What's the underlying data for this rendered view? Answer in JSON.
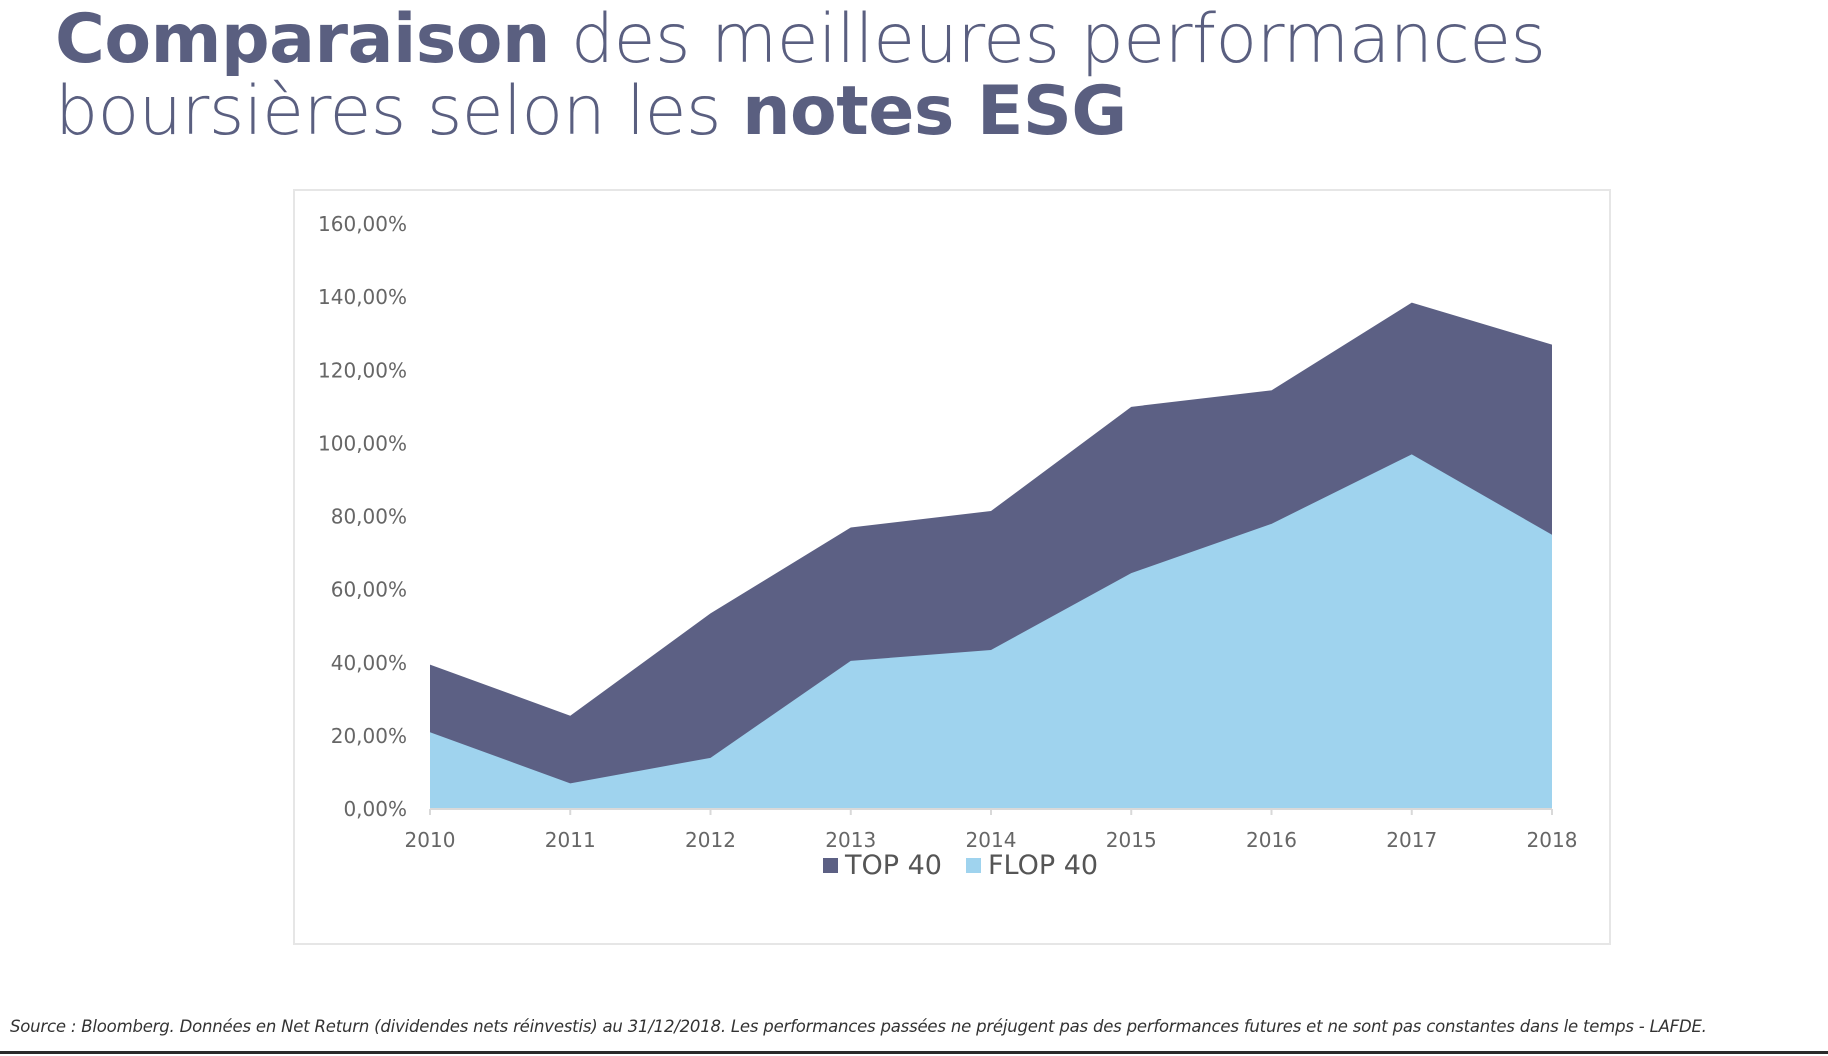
{
  "title": {
    "bold1": "Comparaison",
    "rest1": " des meilleures performances boursières selon les ",
    "bold2": "notes ESG"
  },
  "source": "Source : Bloomberg. Données en Net Return (dividendes nets réinvestis) au 31/12/2018. Les performances passées ne préjugent pas des performances futures et ne sont pas constantes dans le temps - LAFDE.",
  "colors": {
    "top": "#5c6084",
    "flop": "#9fd3ee",
    "title": "#5a5f80"
  },
  "chart_data": {
    "type": "area",
    "title": "",
    "xlabel": "",
    "ylabel": "",
    "categories": [
      "2010",
      "2011",
      "2012",
      "2013",
      "2014",
      "2015",
      "2016",
      "2017",
      "2018"
    ],
    "series": [
      {
        "name": "TOP 40",
        "values": [
          39.5,
          25.5,
          53.5,
          77.0,
          81.5,
          110.0,
          114.5,
          138.5,
          127.0
        ]
      },
      {
        "name": "FLOP 40",
        "values": [
          21.0,
          7.0,
          14.0,
          40.5,
          43.5,
          64.5,
          78.0,
          97.0,
          75.0
        ]
      }
    ],
    "ylim": [
      0,
      160
    ],
    "yticks": [
      "0,00%",
      "20,00%",
      "40,00%",
      "60,00%",
      "80,00%",
      "100,00%",
      "120,00%",
      "140,00%",
      "160,00%"
    ],
    "stacked": false,
    "legend": "bottom-center",
    "grid": false
  }
}
